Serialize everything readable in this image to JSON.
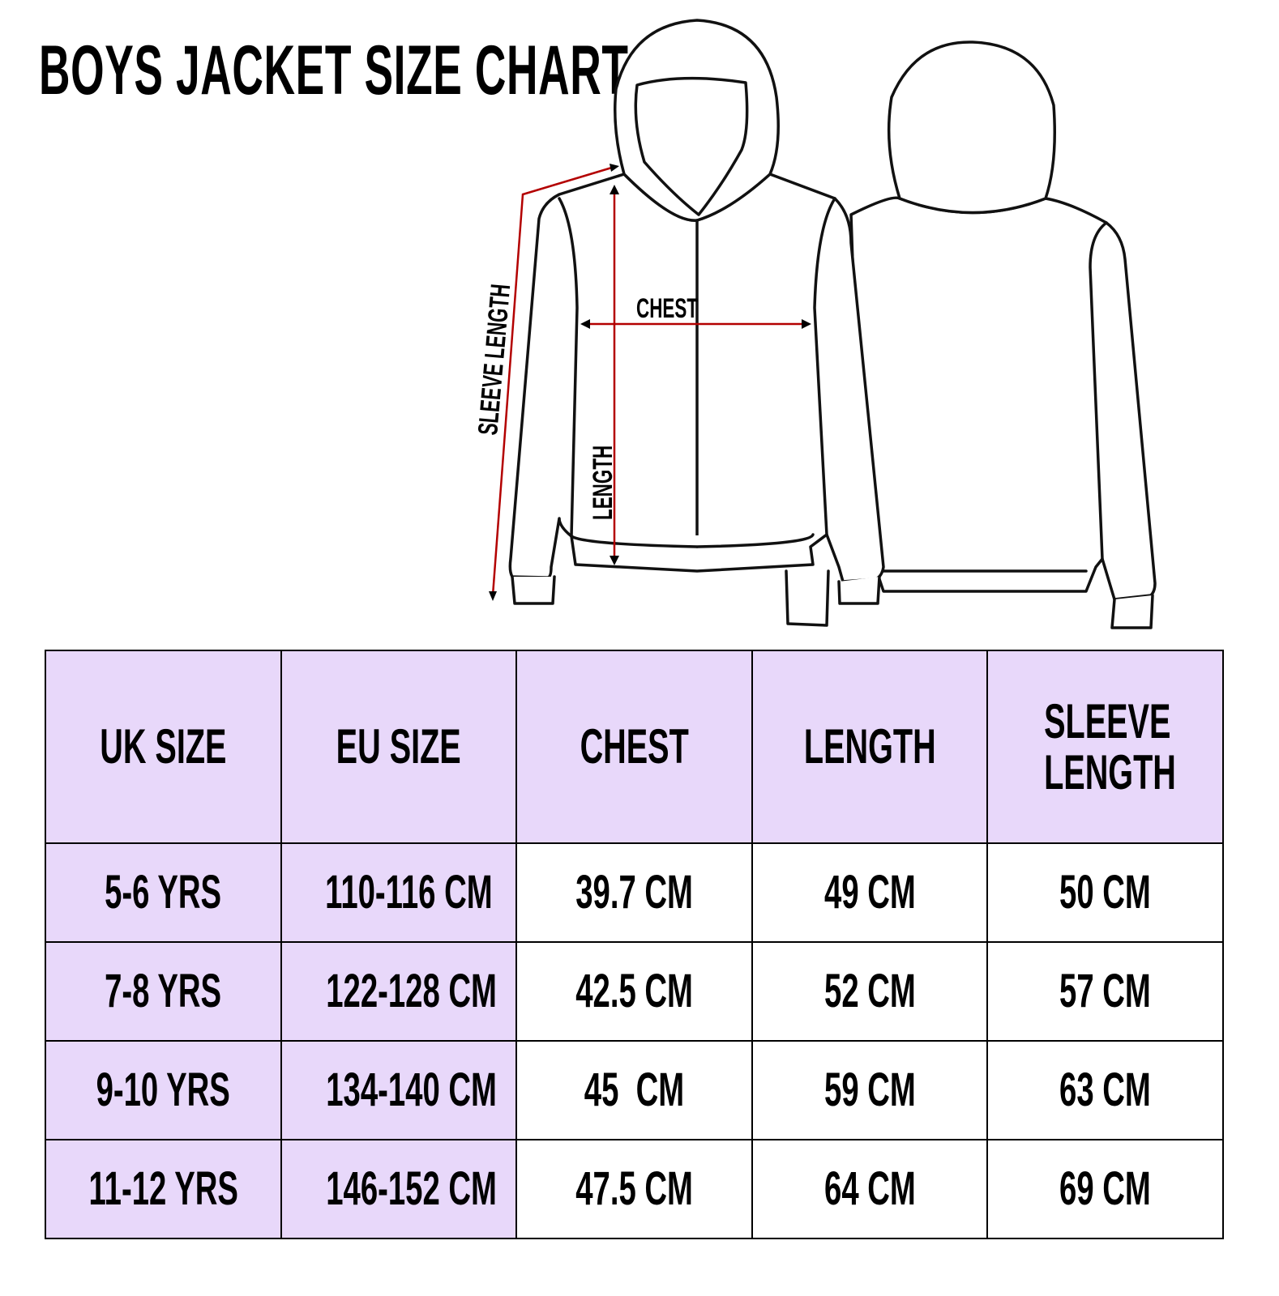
{
  "title": "BOYS JACKET SIZE CHART",
  "diagram": {
    "labels": {
      "chest": "CHEST",
      "length": "LENGTH",
      "sleeve_length": "SLEEVE LENGTH"
    },
    "arrow_color": "#b30000"
  },
  "table": {
    "header_color": "#e8d8fa",
    "headers": [
      "UK SIZE",
      "EU SIZE",
      "CHEST",
      "LENGTH",
      "SLEEVE LENGTH"
    ],
    "rows": [
      [
        "5-6 YRS",
        "110-116 CM",
        "39.7 CM",
        "49 CM",
        "50 CM"
      ],
      [
        "7-8 YRS",
        "122-128 CM",
        "42.5 CM",
        "52 CM",
        "57 CM"
      ],
      [
        "9-10 YRS",
        "134-140 CM",
        "45  CM",
        "59 CM",
        "63 CM"
      ],
      [
        "11-12 YRS",
        "146-152 CM",
        "47.5 CM",
        "64 CM",
        "69 CM"
      ]
    ]
  }
}
